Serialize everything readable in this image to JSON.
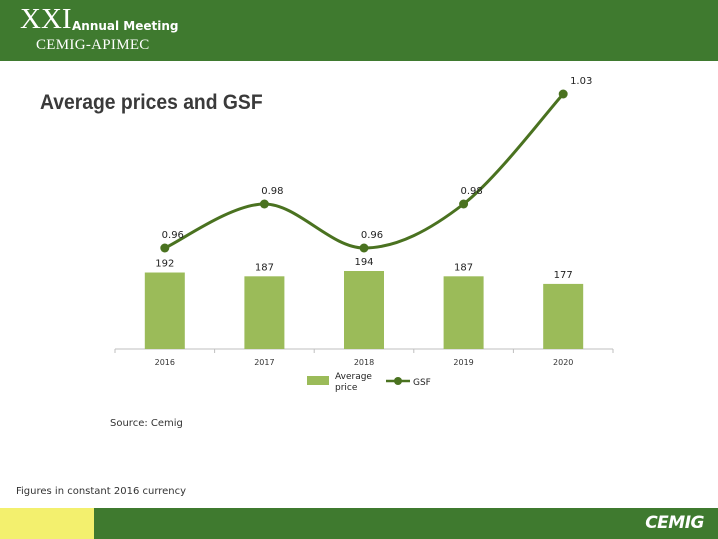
{
  "header": {
    "roman": "XXI",
    "event": "Annual Meeting",
    "org": "CEMIG-APIMEC"
  },
  "page_title": "Average prices and GSF",
  "source": "Source: Cemig",
  "note": "Figures in constant 2016 currency",
  "logo": "CEMIG",
  "colors": {
    "header_green": "#3f7a2f",
    "bar_green": "#9bbb59",
    "line_green": "#4a7220",
    "footer_yellow": "#f3f06e"
  },
  "chart_data": {
    "type": "bar",
    "categories": [
      "2016",
      "2017",
      "2018",
      "2019",
      "2020"
    ],
    "series": [
      {
        "name": "Average price",
        "kind": "bar",
        "values": [
          192,
          187,
          194,
          187,
          177
        ],
        "labels": [
          "192",
          "187",
          "194",
          "187",
          "177"
        ]
      },
      {
        "name": "GSF",
        "kind": "line",
        "smooth": true,
        "values": [
          0.96,
          0.98,
          0.96,
          0.98,
          1.03
        ],
        "labels": [
          "0.96",
          "0.98",
          "0.96",
          "0.98",
          "1.03"
        ]
      }
    ],
    "legend_position": "bottom",
    "grid": false
  }
}
